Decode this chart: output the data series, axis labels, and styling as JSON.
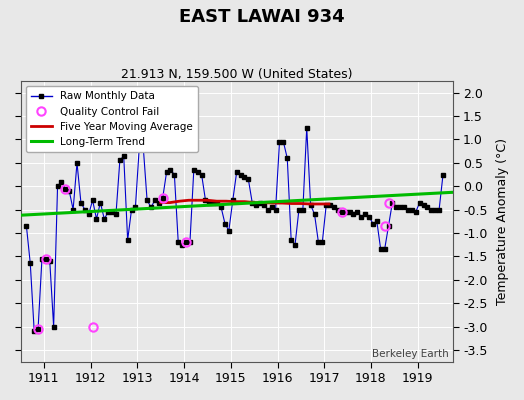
{
  "title": "EAST LAWAI 934",
  "subtitle": "21.913 N, 159.500 W (United States)",
  "ylabel": "Temperature Anomaly (°C)",
  "credit": "Berkeley Earth",
  "background_color": "#e8e8e8",
  "ylim": [
    -3.75,
    2.25
  ],
  "yticks": [
    -3.5,
    -3.0,
    -2.5,
    -2.0,
    -1.5,
    -1.0,
    -0.5,
    0.0,
    0.5,
    1.0,
    1.5,
    2.0
  ],
  "xlim": [
    1910.5,
    1919.75
  ],
  "xticks": [
    1911,
    1912,
    1913,
    1914,
    1915,
    1916,
    1917,
    1918,
    1919
  ],
  "raw_x": [
    1910.625,
    1910.708,
    1910.792,
    1910.875,
    1910.958,
    1911.042,
    1911.125,
    1911.208,
    1911.292,
    1911.375,
    1911.458,
    1911.542,
    1911.625,
    1911.708,
    1911.792,
    1911.875,
    1911.958,
    1912.042,
    1912.125,
    1912.208,
    1912.292,
    1912.375,
    1912.458,
    1912.542,
    1912.625,
    1912.708,
    1912.792,
    1912.875,
    1912.958,
    1913.042,
    1913.125,
    1913.208,
    1913.292,
    1913.375,
    1913.458,
    1913.542,
    1913.625,
    1913.708,
    1913.792,
    1913.875,
    1913.958,
    1914.042,
    1914.125,
    1914.208,
    1914.292,
    1914.375,
    1914.458,
    1914.542,
    1914.625,
    1914.708,
    1914.792,
    1914.875,
    1914.958,
    1915.042,
    1915.125,
    1915.208,
    1915.292,
    1915.375,
    1915.458,
    1915.542,
    1915.625,
    1915.708,
    1915.792,
    1915.875,
    1915.958,
    1916.042,
    1916.125,
    1916.208,
    1916.292,
    1916.375,
    1916.458,
    1916.542,
    1916.625,
    1916.708,
    1916.792,
    1916.875,
    1916.958,
    1917.042,
    1917.125,
    1917.208,
    1917.292,
    1917.375,
    1917.458,
    1917.542,
    1917.625,
    1917.708,
    1917.792,
    1917.875,
    1917.958,
    1918.042,
    1918.125,
    1918.208,
    1918.292,
    1918.375,
    1918.458,
    1918.542,
    1918.625,
    1918.708,
    1918.792,
    1918.875,
    1918.958,
    1919.042,
    1919.125,
    1919.208,
    1919.292,
    1919.375,
    1919.458,
    1919.542
  ],
  "raw_y": [
    -0.85,
    -1.65,
    -3.1,
    -3.05,
    -1.55,
    -1.55,
    -1.6,
    -3.0,
    0.0,
    0.1,
    -0.05,
    -0.1,
    -0.5,
    0.5,
    -0.35,
    -0.5,
    -0.6,
    -0.3,
    -0.7,
    -0.35,
    -0.7,
    -0.55,
    -0.55,
    -0.6,
    0.55,
    0.65,
    -1.15,
    -0.5,
    -0.45,
    0.85,
    0.85,
    -0.3,
    -0.45,
    -0.3,
    -0.35,
    -0.25,
    0.3,
    0.35,
    0.25,
    -1.2,
    -1.25,
    -1.2,
    -1.2,
    0.35,
    0.3,
    0.25,
    -0.3,
    -0.35,
    -0.35,
    -0.35,
    -0.45,
    -0.8,
    -0.95,
    -0.3,
    0.3,
    0.25,
    0.2,
    0.15,
    -0.35,
    -0.4,
    -0.35,
    -0.4,
    -0.5,
    -0.45,
    -0.5,
    0.95,
    0.95,
    0.6,
    -1.15,
    -1.25,
    -0.5,
    -0.5,
    1.25,
    -0.4,
    -0.6,
    -1.2,
    -1.2,
    -0.4,
    -0.4,
    -0.45,
    -0.5,
    -0.55,
    -0.55,
    -0.55,
    -0.6,
    -0.55,
    -0.65,
    -0.6,
    -0.65,
    -0.8,
    -0.75,
    -1.35,
    -1.35,
    -0.85,
    -0.35,
    -0.45,
    -0.45,
    -0.45,
    -0.5,
    -0.5,
    -0.55,
    -0.35,
    -0.4,
    -0.45,
    -0.5,
    -0.5,
    -0.5,
    0.25
  ],
  "qc_fail_x": [
    1910.875,
    1911.042,
    1911.458,
    1912.042,
    1913.042,
    1913.542,
    1914.042,
    1917.375,
    1918.292,
    1918.375
  ],
  "qc_fail_y": [
    -3.05,
    -1.55,
    -0.05,
    -3.0,
    0.85,
    -0.25,
    -1.2,
    -0.55,
    -0.85,
    -0.35
  ],
  "moving_avg_x": [
    1913.5,
    1913.7,
    1913.9,
    1914.1,
    1914.3,
    1914.5,
    1914.7,
    1914.9,
    1915.1,
    1915.3,
    1915.5,
    1915.7,
    1915.9,
    1916.1,
    1916.3,
    1916.5,
    1916.7,
    1916.9,
    1917.1
  ],
  "moving_avg_y": [
    -0.35,
    -0.35,
    -0.32,
    -0.3,
    -0.3,
    -0.3,
    -0.32,
    -0.32,
    -0.33,
    -0.33,
    -0.35,
    -0.35,
    -0.36,
    -0.36,
    -0.37,
    -0.37,
    -0.38,
    -0.38,
    -0.38
  ],
  "trend_x": [
    1910.5,
    1919.75
  ],
  "trend_y": [
    -0.62,
    -0.13
  ],
  "raw_line_color": "#0000cc",
  "raw_marker_color": "#000000",
  "qc_marker_color": "#ff44ff",
  "moving_avg_color": "#cc0000",
  "trend_color": "#00bb00",
  "legend_loc": "upper left"
}
